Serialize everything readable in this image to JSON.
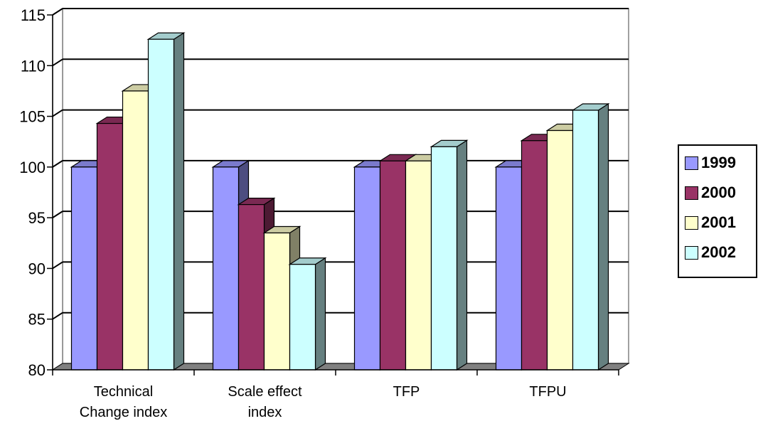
{
  "chart_data": {
    "type": "bar",
    "title": "",
    "xlabel": "",
    "ylabel": "",
    "ylim": [
      80,
      115
    ],
    "yticks": [
      80,
      85,
      90,
      95,
      100,
      105,
      110,
      115
    ],
    "grid": true,
    "legend_position": "right",
    "categories": [
      [
        "Technical",
        "Change index"
      ],
      [
        "Scale effect",
        "index"
      ],
      [
        "TFP"
      ],
      [
        "TFPU"
      ]
    ],
    "series": [
      {
        "name": "1999",
        "values": [
          100,
          100,
          100,
          100
        ],
        "color": "#9999ff",
        "side_color": "#4d4d80",
        "top_color": "#7a7acc"
      },
      {
        "name": "2000",
        "values": [
          104.3,
          96.3,
          100.6,
          102.6
        ],
        "color": "#993366",
        "side_color": "#4d1a33",
        "top_color": "#7a2952"
      },
      {
        "name": "2001",
        "values": [
          107.5,
          93.5,
          100.6,
          103.6
        ],
        "color": "#ffffcc",
        "side_color": "#808066",
        "top_color": "#cccca3"
      },
      {
        "name": "2002",
        "values": [
          112.6,
          90.4,
          102,
          105.6
        ],
        "color": "#ccffff",
        "side_color": "#668080",
        "top_color": "#a3cccc"
      }
    ]
  }
}
